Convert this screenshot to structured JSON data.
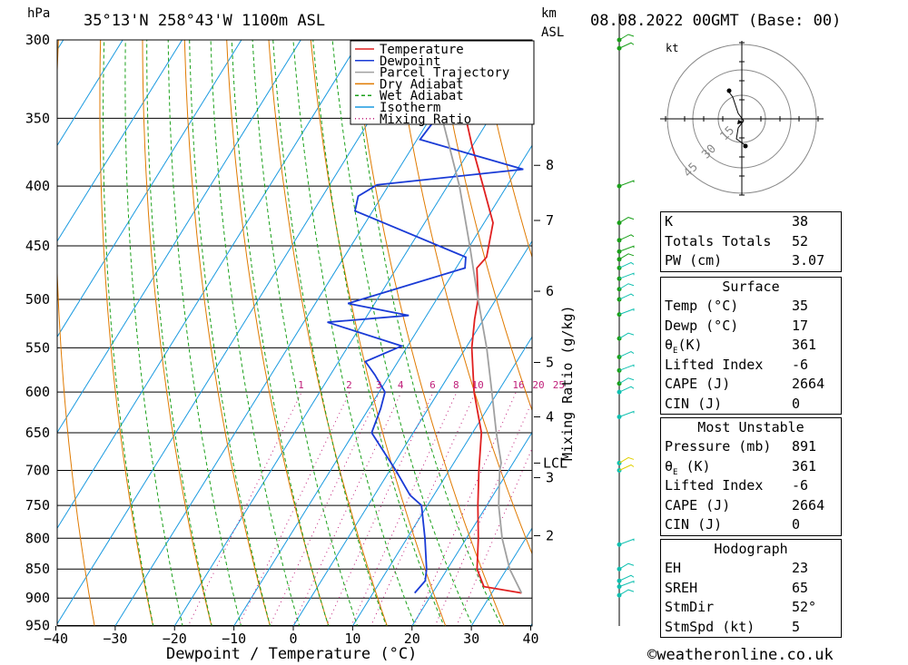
{
  "header": {
    "hpa_label": "hPa",
    "location": "35°13'N  258°43'W  1100m  ASL",
    "km_label": "km",
    "asl_label": "ASL",
    "date": "08.08.2022  00GMT  (Base: 00)"
  },
  "footer": {
    "copyright": "©weatheronline.co.uk"
  },
  "chart_data": {
    "type": "line",
    "subtype": "skew-T log-P sounding",
    "xlabel": "Dewpoint / Temperature (°C)",
    "ylabel": "hPa",
    "mixing_ratio_axis_label": "Mixing Ratio (g/kg)",
    "x_ticks": [
      -40,
      -30,
      -20,
      -10,
      0,
      10,
      20,
      30,
      40
    ],
    "pressure_levels": [
      300,
      350,
      400,
      450,
      500,
      550,
      600,
      650,
      700,
      750,
      800,
      850,
      900,
      950
    ],
    "km_ticks": [
      {
        "label": "8",
        "p": 384
      },
      {
        "label": "7",
        "p": 428
      },
      {
        "label": "6",
        "p": 492
      },
      {
        "label": "5",
        "p": 566
      },
      {
        "label": "4",
        "p": 630
      },
      {
        "label": "3",
        "p": 710
      },
      {
        "label": "2",
        "p": 796
      }
    ],
    "lcl": {
      "label": "LCL",
      "p": 690
    },
    "mixing_ratio_labels": [
      "1",
      "2",
      "3",
      "4",
      "6",
      "8",
      "10",
      "16",
      "20",
      "25"
    ],
    "legend": [
      {
        "name": "Temperature",
        "color": "#e02020",
        "style": "solid"
      },
      {
        "name": "Dewpoint",
        "color": "#1a3bd6",
        "style": "solid"
      },
      {
        "name": "Parcel Trajectory",
        "color": "#a0a0a0",
        "style": "solid"
      },
      {
        "name": "Dry Adiabat",
        "color": "#e07a00",
        "style": "solid"
      },
      {
        "name": "Wet Adiabat",
        "color": "#1aa01a",
        "style": "dashed"
      },
      {
        "name": "Isotherm",
        "color": "#1a9ae0",
        "style": "solid"
      },
      {
        "name": "Mixing Ratio",
        "color": "#c0207a",
        "style": "dotted"
      }
    ],
    "series": [
      {
        "name": "Temperature",
        "points": [
          [
            891,
            35
          ],
          [
            880,
            28
          ],
          [
            850,
            25
          ],
          [
            800,
            22
          ],
          [
            750,
            18.5
          ],
          [
            700,
            15
          ],
          [
            650,
            11.5
          ],
          [
            600,
            6
          ],
          [
            550,
            1
          ],
          [
            520,
            -1.5
          ],
          [
            500,
            -3
          ],
          [
            470,
            -6.5
          ],
          [
            460,
            -6
          ],
          [
            430,
            -8.5
          ],
          [
            400,
            -14
          ],
          [
            370,
            -20
          ],
          [
            350,
            -24
          ],
          [
            300,
            -33
          ]
        ]
      },
      {
        "name": "Dewpoint",
        "points": [
          [
            891,
            17
          ],
          [
            870,
            17.5
          ],
          [
            850,
            16.5
          ],
          [
            800,
            13
          ],
          [
            750,
            9
          ],
          [
            735,
            6
          ],
          [
            700,
            1
          ],
          [
            650,
            -7
          ],
          [
            620,
            -8
          ],
          [
            600,
            -9
          ],
          [
            580,
            -12.5
          ],
          [
            565,
            -15.5
          ],
          [
            548,
            -11
          ],
          [
            523,
            -26
          ],
          [
            516,
            -13
          ],
          [
            504,
            -24.5
          ],
          [
            470,
            -8.5
          ],
          [
            460,
            -9.5
          ],
          [
            420,
            -33
          ],
          [
            408,
            -34
          ],
          [
            399,
            -32
          ],
          [
            387,
            -9
          ],
          [
            365,
            -29.5
          ],
          [
            350,
            -29
          ],
          [
            300,
            -20
          ]
        ]
      },
      {
        "name": "Parcel Trajectory",
        "points": [
          [
            891,
            35
          ],
          [
            850,
            30.5
          ],
          [
            800,
            26
          ],
          [
            750,
            22
          ],
          [
            700,
            18.5
          ],
          [
            690,
            18
          ],
          [
            650,
            14
          ],
          [
            600,
            9
          ],
          [
            550,
            3.5
          ],
          [
            500,
            -3
          ],
          [
            450,
            -10
          ],
          [
            400,
            -18
          ],
          [
            350,
            -28
          ],
          [
            330,
            -33
          ]
        ]
      }
    ],
    "hodograph": {
      "unit_label": "kt",
      "ring_labels": [
        "15",
        "30",
        "45"
      ]
    },
    "indices": [
      {
        "label": "K",
        "value": "38"
      },
      {
        "label": "Totals Totals",
        "value": "52"
      },
      {
        "label": "PW (cm)",
        "value": "3.07"
      }
    ],
    "surface": {
      "title": "Surface",
      "rows": [
        {
          "label": "Temp (°C)",
          "value": "35"
        },
        {
          "label": "Dewp (°C)",
          "value": "17"
        },
        {
          "label": "θE(K)",
          "value": "361"
        },
        {
          "label": "Lifted Index",
          "value": "-6"
        },
        {
          "label": "CAPE (J)",
          "value": "2664"
        },
        {
          "label": "CIN (J)",
          "value": "0"
        }
      ]
    },
    "most_unstable": {
      "title": "Most Unstable",
      "rows": [
        {
          "label": "Pressure (mb)",
          "value": "891"
        },
        {
          "label": "θE (K)",
          "value": "361"
        },
        {
          "label": "Lifted Index",
          "value": "-6"
        },
        {
          "label": "CAPE (J)",
          "value": "2664"
        },
        {
          "label": "CIN (J)",
          "value": "0"
        }
      ]
    },
    "hodograph_box": {
      "title": "Hodograph",
      "rows": [
        {
          "label": "EH",
          "value": "23"
        },
        {
          "label": "SREH",
          "value": "65"
        },
        {
          "label": "StmDir",
          "value": "52°"
        },
        {
          "label": "StmSpd (kt)",
          "value": "5"
        }
      ]
    }
  }
}
